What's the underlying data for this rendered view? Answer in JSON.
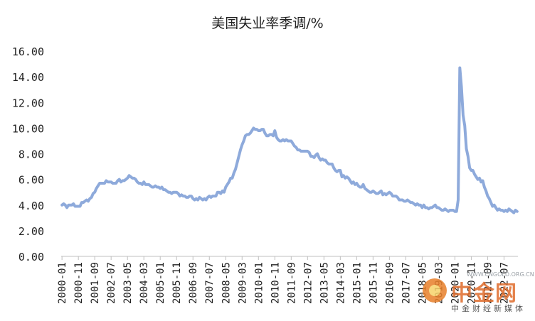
{
  "chart_data": {
    "type": "line",
    "title": "美国失业率季调/%",
    "xlabel": "",
    "ylabel": "",
    "ylim": [
      0,
      16
    ],
    "yticks": [
      "0.00",
      "2.00",
      "4.00",
      "6.00",
      "8.00",
      "10.00",
      "12.00",
      "14.00",
      "16.00"
    ],
    "xticks": [
      "2000-01",
      "2000-11",
      "2001-09",
      "2002-07",
      "2003-05",
      "2004-03",
      "2005-01",
      "2005-11",
      "2006-09",
      "2007-07",
      "2008-05",
      "2009-03",
      "2010-01",
      "2010-11",
      "2011-09",
      "2012-07",
      "2013-05",
      "2014-03",
      "2015-01",
      "2015-11",
      "2016-09",
      "2017-07",
      "2018-05",
      "2019-03",
      "2020-01",
      "2020-11",
      "2021-09",
      "2022-07"
    ],
    "grid": false,
    "legend": "none",
    "line_color": "#8eaadb",
    "series": [
      {
        "x_start": "2000-01",
        "frequency": "monthly",
        "values": [
          4.0,
          4.1,
          4.0,
          3.8,
          4.0,
          4.0,
          4.0,
          4.1,
          3.9,
          3.9,
          3.9,
          3.9,
          4.2,
          4.2,
          4.3,
          4.4,
          4.3,
          4.5,
          4.6,
          4.9,
          5.0,
          5.3,
          5.5,
          5.7,
          5.7,
          5.7,
          5.7,
          5.9,
          5.8,
          5.8,
          5.8,
          5.7,
          5.7,
          5.7,
          5.9,
          6.0,
          5.8,
          5.9,
          5.9,
          6.0,
          6.1,
          6.3,
          6.2,
          6.1,
          6.1,
          6.0,
          5.8,
          5.7,
          5.7,
          5.6,
          5.8,
          5.6,
          5.6,
          5.6,
          5.5,
          5.4,
          5.4,
          5.5,
          5.4,
          5.4,
          5.3,
          5.4,
          5.2,
          5.2,
          5.1,
          5.0,
          5.0,
          4.9,
          5.0,
          5.0,
          5.0,
          4.9,
          4.7,
          4.8,
          4.7,
          4.7,
          4.6,
          4.6,
          4.7,
          4.7,
          4.5,
          4.4,
          4.5,
          4.4,
          4.6,
          4.5,
          4.4,
          4.5,
          4.4,
          4.6,
          4.7,
          4.6,
          4.7,
          4.7,
          4.7,
          5.0,
          5.0,
          4.9,
          5.1,
          5.0,
          5.4,
          5.6,
          5.8,
          6.1,
          6.1,
          6.5,
          6.8,
          7.3,
          7.8,
          8.3,
          8.7,
          9.0,
          9.4,
          9.5,
          9.5,
          9.6,
          9.8,
          10.0,
          9.9,
          9.9,
          9.8,
          9.8,
          9.9,
          9.9,
          9.6,
          9.4,
          9.4,
          9.5,
          9.5,
          9.4,
          9.8,
          9.3,
          9.1,
          9.0,
          9.0,
          9.1,
          9.0,
          9.1,
          9.0,
          9.0,
          9.0,
          8.8,
          8.6,
          8.5,
          8.3,
          8.3,
          8.2,
          8.2,
          8.2,
          8.2,
          8.2,
          8.1,
          7.8,
          7.8,
          7.7,
          7.9,
          8.0,
          7.7,
          7.5,
          7.6,
          7.5,
          7.5,
          7.3,
          7.2,
          7.2,
          7.2,
          6.9,
          6.7,
          6.6,
          6.7,
          6.7,
          6.2,
          6.3,
          6.1,
          6.2,
          6.1,
          5.9,
          5.7,
          5.8,
          5.6,
          5.7,
          5.5,
          5.4,
          5.4,
          5.6,
          5.3,
          5.2,
          5.1,
          5.0,
          5.0,
          5.1,
          5.0,
          4.9,
          4.9,
          5.0,
          5.1,
          4.8,
          4.9,
          4.8,
          4.9,
          5.0,
          4.9,
          4.7,
          4.7,
          4.7,
          4.6,
          4.4,
          4.4,
          4.4,
          4.3,
          4.3,
          4.4,
          4.3,
          4.2,
          4.2,
          4.1,
          4.0,
          4.1,
          4.0,
          4.0,
          3.8,
          4.0,
          3.8,
          3.8,
          3.7,
          3.8,
          3.8,
          3.9,
          4.0,
          3.8,
          3.8,
          3.7,
          3.6,
          3.6,
          3.7,
          3.6,
          3.5,
          3.6,
          3.6,
          3.6,
          3.5,
          3.5,
          4.4,
          14.7,
          13.2,
          11.0,
          10.2,
          8.4,
          7.8,
          6.9,
          6.7,
          6.7,
          6.4,
          6.2,
          6.0,
          6.1,
          5.8,
          5.9,
          5.4,
          5.1,
          4.7,
          4.5,
          4.2,
          3.9,
          4.0,
          3.8,
          3.6,
          3.7,
          3.6,
          3.6,
          3.5,
          3.6,
          3.5,
          3.7,
          3.6,
          3.5,
          3.4,
          3.6,
          3.5
        ]
      }
    ]
  },
  "watermark": {
    "text": "中金网",
    "url": "WWW.CNGOLD.ORG.CN",
    "sub": "中金财经新媒体"
  }
}
